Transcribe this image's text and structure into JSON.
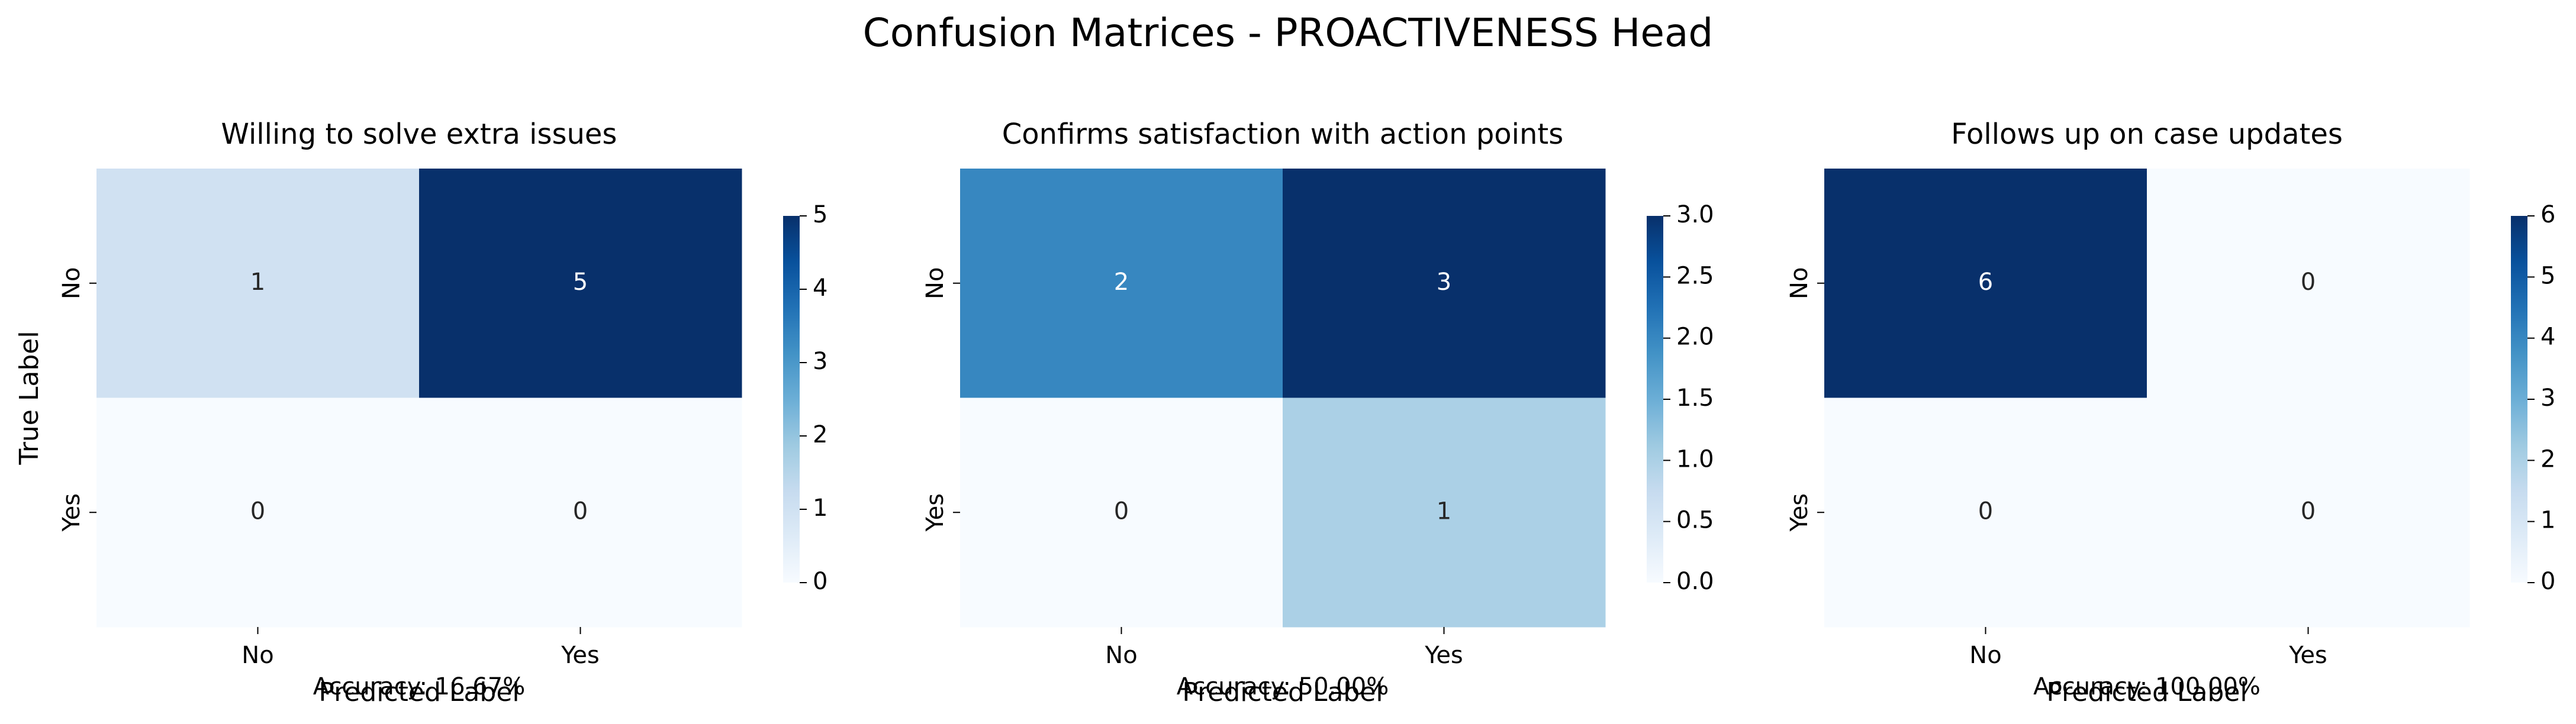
{
  "figure": {
    "title": "Confusion Matrices - PROACTIVENESS Head"
  },
  "chart_data": [
    {
      "type": "heatmap",
      "title": "Willing to solve extra issues",
      "xlabel": "Predicted Label",
      "ylabel": "True Label",
      "x_categories": [
        "No",
        "Yes"
      ],
      "y_categories": [
        "No",
        "Yes"
      ],
      "matrix": [
        [
          1,
          5
        ],
        [
          0,
          0
        ]
      ],
      "colorbar": {
        "min": 0,
        "max": 5,
        "ticks": [
          "0",
          "1",
          "2",
          "3",
          "4",
          "5"
        ],
        "colormap": "Blues"
      },
      "accuracy_label": "Accuracy: 16.67%"
    },
    {
      "type": "heatmap",
      "title": "Confirms satisfaction with action points",
      "xlabel": "Predicted Label",
      "ylabel": "",
      "x_categories": [
        "No",
        "Yes"
      ],
      "y_categories": [
        "No",
        "Yes"
      ],
      "matrix": [
        [
          2,
          3
        ],
        [
          0,
          1
        ]
      ],
      "colorbar": {
        "min": 0,
        "max": 3,
        "ticks": [
          "0.0",
          "0.5",
          "1.0",
          "1.5",
          "2.0",
          "2.5",
          "3.0"
        ],
        "colormap": "Blues"
      },
      "accuracy_label": "Accuracy: 50.00%"
    },
    {
      "type": "heatmap",
      "title": "Follows up on case updates",
      "xlabel": "Predicted Label",
      "ylabel": "",
      "x_categories": [
        "No",
        "Yes"
      ],
      "y_categories": [
        "No",
        "Yes"
      ],
      "matrix": [
        [
          6,
          0
        ],
        [
          0,
          0
        ]
      ],
      "colorbar": {
        "min": 0,
        "max": 6,
        "ticks": [
          "0",
          "1",
          "2",
          "3",
          "4",
          "5",
          "6"
        ],
        "colormap": "Blues"
      },
      "accuracy_label": "Accuracy: 100.00%"
    }
  ]
}
